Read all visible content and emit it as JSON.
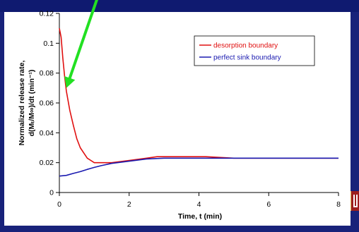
{
  "colors": {
    "background": "#18227a",
    "panel": "#ffffff",
    "desorption": "#e01010",
    "sink": "#1a1ab0",
    "arrow": "#22e022"
  },
  "chart_data": {
    "type": "line",
    "xlabel": "Time, t (min)",
    "ylabel_line1": "Normalized release rate,",
    "ylabel_line2": "d(Mₜ/M∞)/dt (min⁻¹)",
    "xlim": [
      0,
      8
    ],
    "ylim": [
      0,
      0.12
    ],
    "x_ticks": [
      0,
      2,
      4,
      6,
      8
    ],
    "y_ticks": [
      0,
      0.02,
      0.04,
      0.06,
      0.08,
      0.1,
      0.12
    ],
    "x_tick_labels": [
      "0",
      "2",
      "4",
      "6",
      "8"
    ],
    "y_tick_labels": [
      "0",
      "0.02",
      "0.04",
      "0.06",
      "0.08",
      "0.1",
      "0.12"
    ],
    "grid": false,
    "legend_position": "top-right",
    "series": [
      {
        "name": "desorption boundary",
        "color": "#e01010",
        "x": [
          0,
          0.05,
          0.1,
          0.15,
          0.2,
          0.3,
          0.4,
          0.5,
          0.6,
          0.8,
          1.0,
          1.5,
          2.0,
          2.5,
          2.8,
          3.5,
          4.2,
          5.0,
          6.0,
          7.0,
          7.5,
          8.0
        ],
        "y": [
          0.11,
          0.104,
          0.09,
          0.078,
          0.068,
          0.055,
          0.045,
          0.036,
          0.03,
          0.023,
          0.02,
          0.02,
          0.0215,
          0.023,
          0.024,
          0.024,
          0.024,
          0.023,
          0.023,
          0.023,
          0.023,
          0.023
        ]
      },
      {
        "name": "perfect sink boundary",
        "color": "#1a1ab0",
        "x": [
          0,
          0.2,
          0.4,
          0.6,
          0.8,
          1.0,
          1.2,
          1.5,
          2.0,
          2.5,
          3.0,
          4.0,
          5.0,
          6.0,
          7.0,
          8.0
        ],
        "y": [
          0.011,
          0.0115,
          0.0128,
          0.014,
          0.0155,
          0.0168,
          0.018,
          0.0195,
          0.021,
          0.0225,
          0.023,
          0.023,
          0.023,
          0.023,
          0.023,
          0.023
        ]
      }
    ],
    "annotation": {
      "type": "arrow",
      "from": [
        1.1,
        0.131
      ],
      "to": [
        0.2,
        0.07
      ]
    }
  }
}
